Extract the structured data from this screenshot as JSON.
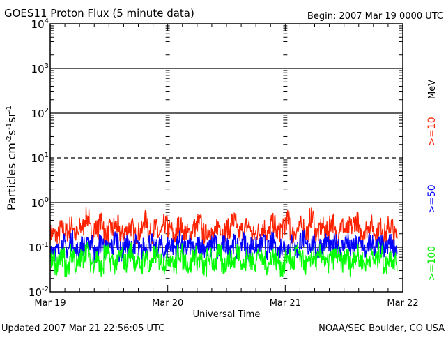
{
  "chart_data": {
    "type": "line",
    "title": "GOES11 Proton Flux (5 minute data)",
    "begin_label": "Begin: 2007 Mar 19 0000 UTC",
    "xlabel": "Universal Time",
    "ylabel": "Particles cm⁻²s⁻¹sr⁻¹",
    "ylabel_parts": {
      "base": "Particles cm",
      "e1": "-2",
      "s": "s",
      "e2": "-1",
      "sr": "sr",
      "e3": "-1"
    },
    "yscale": "log",
    "ylim": [
      0.01,
      10000
    ],
    "y_ticks": [
      {
        "base": "10",
        "exp": "4"
      },
      {
        "base": "10",
        "exp": "3"
      },
      {
        "base": "10",
        "exp": "2"
      },
      {
        "base": "10",
        "exp": "1"
      },
      {
        "base": "10",
        "exp": "0"
      },
      {
        "base": "10",
        "exp": "-1"
      },
      {
        "base": "10",
        "exp": "-2"
      }
    ],
    "x_ticks": [
      "Mar 19",
      "Mar 20",
      "Mar 21",
      "Mar 22"
    ],
    "xlim_hours": [
      0,
      72
    ],
    "threshold": 10,
    "units_label": "MeV",
    "sample_interval_hours": 1,
    "series": [
      {
        "name": ">=10",
        "color": "#ff2200",
        "values": [
          0.2,
          0.18,
          0.25,
          0.22,
          0.3,
          0.19,
          0.28,
          0.45,
          0.22,
          0.26,
          0.35,
          0.2,
          0.24,
          0.3,
          0.19,
          0.22,
          0.28,
          0.18,
          0.22,
          0.4,
          0.2,
          0.26,
          0.19,
          0.32,
          0.24,
          0.18,
          0.3,
          0.22,
          0.2,
          0.28,
          0.35,
          0.2,
          0.24,
          0.18,
          0.3,
          0.22,
          0.26,
          0.38,
          0.2,
          0.24,
          0.3,
          0.18,
          0.22,
          0.28,
          0.2,
          0.34,
          0.22,
          0.26,
          0.4,
          0.2,
          0.24,
          0.3,
          0.22,
          0.45,
          0.2,
          0.28,
          0.22,
          0.36,
          0.2,
          0.3,
          0.24,
          0.28,
          0.38,
          0.2,
          0.26,
          0.32,
          0.22,
          0.28,
          0.2,
          0.3,
          0.18
        ]
      },
      {
        "name": ">=50",
        "color": "#0000ff",
        "values": [
          0.1,
          0.08,
          0.12,
          0.09,
          0.14,
          0.08,
          0.11,
          0.1,
          0.13,
          0.07,
          0.12,
          0.09,
          0.1,
          0.15,
          0.08,
          0.11,
          0.09,
          0.12,
          0.08,
          0.1,
          0.13,
          0.09,
          0.11,
          0.08,
          0.12,
          0.1,
          0.14,
          0.09,
          0.11,
          0.08,
          0.12,
          0.1,
          0.09,
          0.13,
          0.08,
          0.11,
          0.1,
          0.12,
          0.09,
          0.14,
          0.08,
          0.11,
          0.1,
          0.12,
          0.09,
          0.13,
          0.08,
          0.11,
          0.1,
          0.12,
          0.09,
          0.15,
          0.1,
          0.12,
          0.08,
          0.11,
          0.13,
          0.09,
          0.12,
          0.1,
          0.14,
          0.09,
          0.11,
          0.12,
          0.08,
          0.13,
          0.1,
          0.11,
          0.09,
          0.12,
          0.1
        ]
      },
      {
        "name": ">=100",
        "color": "#00ff00",
        "values": [
          0.05,
          0.04,
          0.06,
          0.035,
          0.07,
          0.04,
          0.055,
          0.08,
          0.045,
          0.06,
          0.035,
          0.07,
          0.05,
          0.04,
          0.065,
          0.045,
          0.08,
          0.05,
          0.04,
          0.06,
          0.035,
          0.07,
          0.05,
          0.045,
          0.06,
          0.04,
          0.075,
          0.05,
          0.04,
          0.065,
          0.05,
          0.035,
          0.06,
          0.045,
          0.07,
          0.04,
          0.055,
          0.05,
          0.08,
          0.04,
          0.06,
          0.045,
          0.07,
          0.05,
          0.04,
          0.065,
          0.05,
          0.035,
          0.06,
          0.045,
          0.075,
          0.05,
          0.04,
          0.06,
          0.05,
          0.07,
          0.04,
          0.055,
          0.065,
          0.045,
          0.06,
          0.04,
          0.07,
          0.05,
          0.045,
          0.06,
          0.05,
          0.075,
          0.04,
          0.06,
          0.05
        ]
      }
    ],
    "series_min": [
      0.12,
      0.045,
      0.022
    ]
  },
  "footer": {
    "updated": "Updated 2007 Mar 21 22:56:05 UTC",
    "source": "NOAA/SEC Boulder, CO USA"
  }
}
